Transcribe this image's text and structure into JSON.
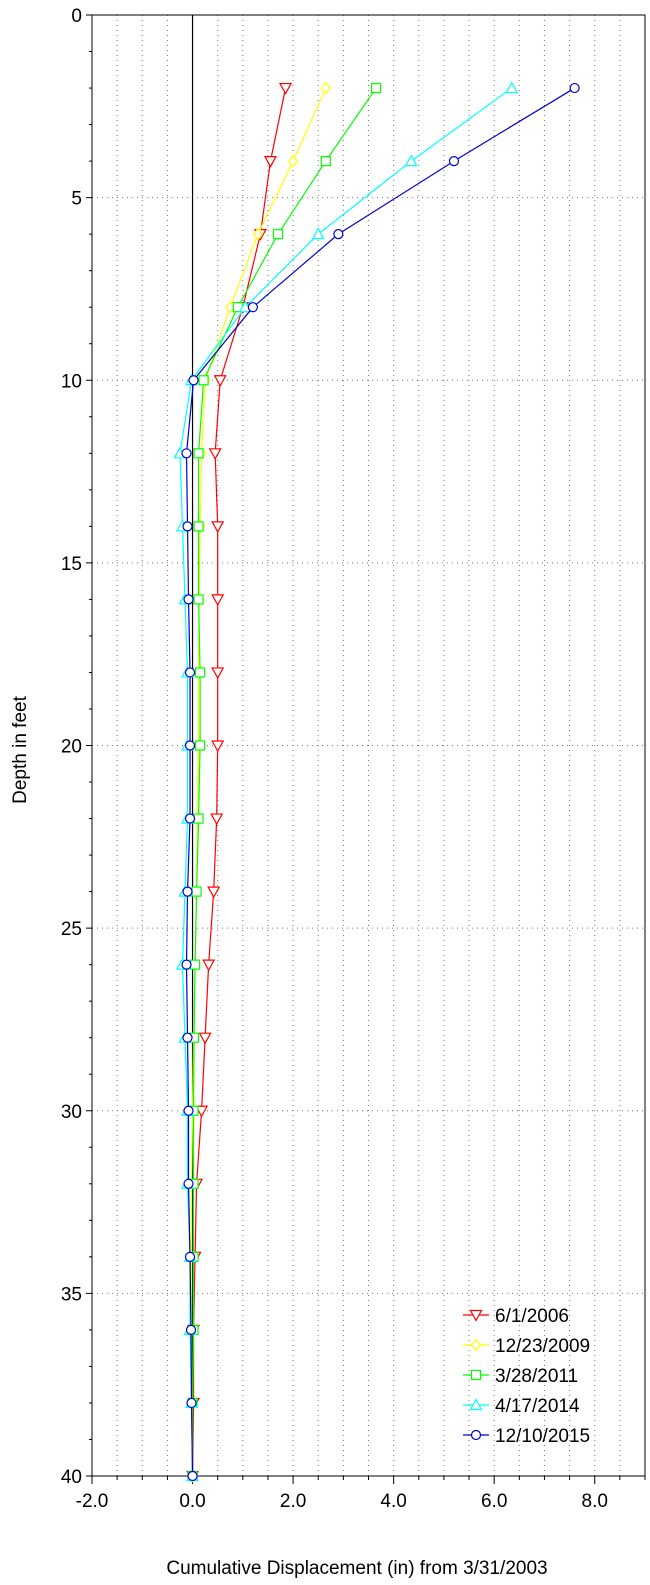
{
  "chart_data": {
    "type": "line",
    "xlabel": "Cumulative Displacement (in) from 3/31/2003",
    "ylabel": "Depth in feet",
    "xlim": [
      -2.0,
      9.0
    ],
    "ylim": [
      0,
      40
    ],
    "y_inverted": true,
    "x_ticks": [
      -2.0,
      0.0,
      2.0,
      4.0,
      6.0,
      8.0
    ],
    "x_tick_labels": [
      "-2.0",
      "0.0",
      "2.0",
      "4.0",
      "6.0",
      "8.0"
    ],
    "y_ticks": [
      0,
      5,
      10,
      15,
      20,
      25,
      30,
      35,
      40
    ],
    "y_tick_labels": [
      "0",
      "5",
      "10",
      "15",
      "20",
      "25",
      "30",
      "35",
      "40"
    ],
    "grid": true,
    "legend_position": "bottom-right",
    "depths": [
      2,
      4,
      6,
      8,
      10,
      12,
      14,
      16,
      18,
      20,
      22,
      24,
      26,
      28,
      30,
      32,
      34,
      36,
      38,
      40
    ],
    "series": [
      {
        "name": "6/1/2006",
        "color": "#ff0000",
        "marker": "triangle-down",
        "values": [
          1.85,
          1.55,
          1.35,
          1.0,
          0.55,
          0.45,
          0.5,
          0.5,
          0.5,
          0.5,
          0.48,
          0.42,
          0.32,
          0.25,
          0.18,
          0.08,
          0.05,
          0.02,
          0.02,
          0.0
        ]
      },
      {
        "name": "12/23/2009",
        "color": "#ffff00",
        "marker": "diamond",
        "values": [
          2.65,
          2.0,
          1.3,
          0.75,
          0.25,
          0.18,
          0.15,
          0.13,
          0.12,
          0.12,
          0.1,
          0.08,
          0.05,
          0.02,
          0.0,
          -0.02,
          -0.02,
          -0.02,
          -0.02,
          0.0
        ]
      },
      {
        "name": "3/28/2011",
        "color": "#00ff00",
        "marker": "square",
        "values": [
          3.65,
          2.65,
          1.7,
          0.9,
          0.22,
          0.12,
          0.12,
          0.12,
          0.15,
          0.15,
          0.12,
          0.08,
          0.05,
          0.03,
          0.02,
          0.02,
          0.02,
          0.02,
          0.0,
          0.0
        ]
      },
      {
        "name": "4/17/2014",
        "color": "#00ffff",
        "marker": "triangle-up",
        "values": [
          6.35,
          4.35,
          2.5,
          1.05,
          -0.02,
          -0.25,
          -0.2,
          -0.15,
          -0.1,
          -0.1,
          -0.1,
          -0.15,
          -0.2,
          -0.15,
          -0.1,
          -0.1,
          -0.05,
          -0.05,
          -0.02,
          0.0
        ]
      },
      {
        "name": "12/10/2015",
        "color": "#0000cc",
        "marker": "circle",
        "values": [
          7.6,
          5.2,
          2.9,
          1.2,
          0.02,
          -0.12,
          -0.1,
          -0.08,
          -0.05,
          -0.05,
          -0.05,
          -0.1,
          -0.12,
          -0.1,
          -0.08,
          -0.08,
          -0.05,
          -0.03,
          -0.02,
          0.0
        ]
      }
    ]
  }
}
